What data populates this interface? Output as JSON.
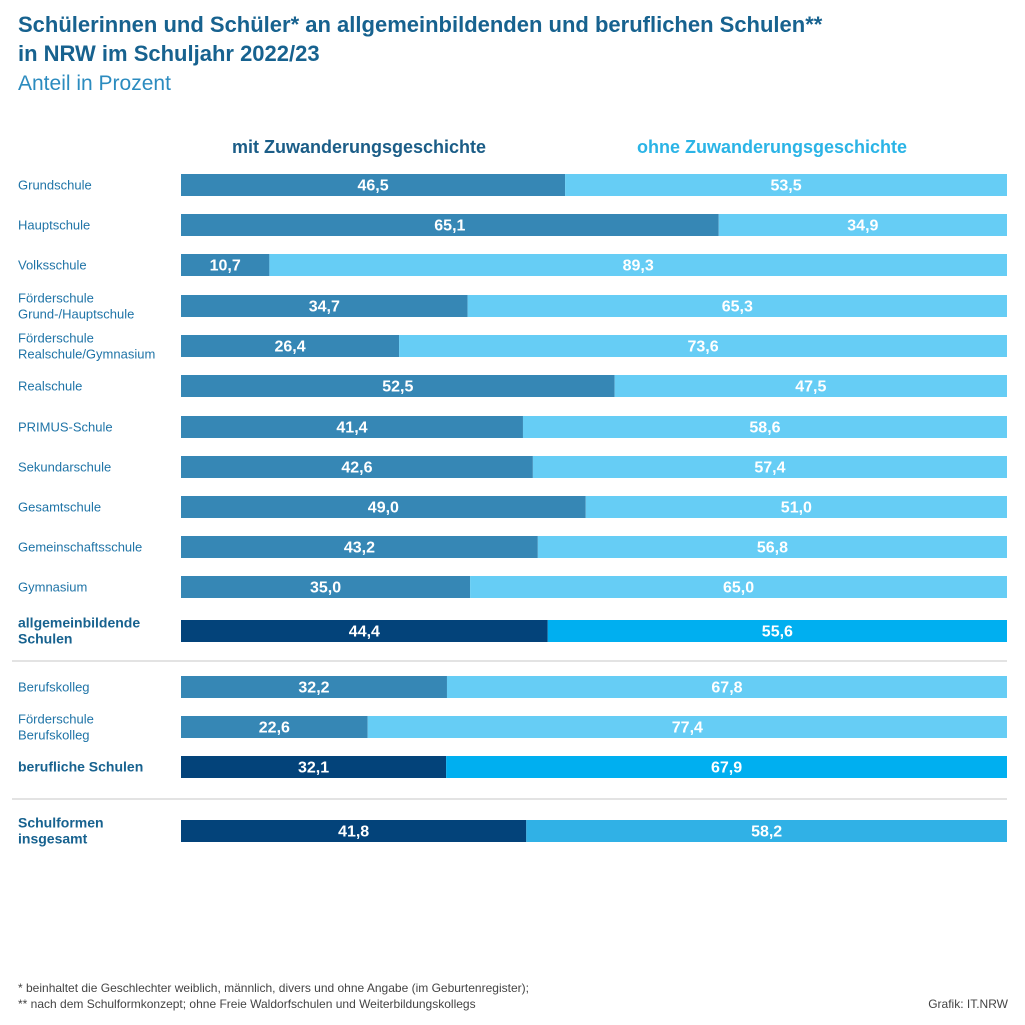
{
  "header": {
    "title_line1": "Schülerinnen und Schüler* an allgemeinbildenden und beruflichen Schulen**",
    "title_line2": "in NRW im Schuljahr 2022/23",
    "subtitle": "Anteil in Prozent"
  },
  "legend": {
    "mit": "mit Zuwanderungsgeschichte",
    "ohne": "ohne Zuwanderungsgeschichte"
  },
  "chart_data": {
    "type": "bar",
    "orientation": "horizontal",
    "stacked": true,
    "xlim": [
      0,
      100
    ],
    "grid": false,
    "legend_position": "top",
    "categories": [
      [
        "Grundschule"
      ],
      [
        "Hauptschule"
      ],
      [
        "Volksschule"
      ],
      [
        "Förderschule",
        "Grund-/Hauptschule"
      ],
      [
        "Förderschule",
        "Realschule/Gymnasium"
      ],
      [
        "Realschule"
      ],
      [
        "PRIMUS-Schule"
      ],
      [
        "Sekundarschule"
      ],
      [
        "Gesamtschule"
      ],
      [
        "Gemeinschaftsschule"
      ],
      [
        "Gymnasium"
      ],
      [
        "allgemeinbildende",
        "Schulen"
      ],
      [
        "Berufskolleg"
      ],
      [
        "Förderschule",
        "Berufskolleg"
      ],
      [
        "berufliche Schulen"
      ],
      [
        "Schulformen",
        "insgesamt"
      ]
    ],
    "row_kind": [
      "detail",
      "detail",
      "detail",
      "detail",
      "detail",
      "detail",
      "detail",
      "detail",
      "detail",
      "detail",
      "detail",
      "subtotal",
      "detail",
      "detail",
      "subtotal",
      "total"
    ],
    "series": [
      {
        "name": "mit Zuwanderungsgeschichte",
        "values": [
          46.5,
          65.1,
          10.7,
          34.7,
          26.4,
          52.5,
          41.4,
          42.6,
          49.0,
          43.2,
          35.0,
          44.4,
          32.2,
          22.6,
          32.1,
          41.8
        ],
        "labels": [
          "46,5",
          "65,1",
          "10,7",
          "34,7",
          "26,4",
          "52,5",
          "41,4",
          "42,6",
          "49,0",
          "43,2",
          "35,0",
          "44,4",
          "32,2",
          "22,6",
          "32,1",
          "41,8"
        ]
      },
      {
        "name": "ohne Zuwanderungsgeschichte",
        "values": [
          53.5,
          34.9,
          89.3,
          65.3,
          73.6,
          47.5,
          58.6,
          57.4,
          51.0,
          56.8,
          65.0,
          55.6,
          67.8,
          77.4,
          67.9,
          58.2
        ],
        "labels": [
          "53,5",
          "34,9",
          "89,3",
          "65,3",
          "73,6",
          "47,5",
          "58,6",
          "57,4",
          "51,0",
          "56,8",
          "65,0",
          "55,6",
          "67,8",
          "77,4",
          "67,9",
          "58,2"
        ]
      }
    ],
    "colors": {
      "mit_detail": "#3687b5",
      "ohne_detail": "#66cdf5",
      "mit_subtotal": "#03437a",
      "ohne_subtotal": "#00aff0",
      "mit_total": "#03437a",
      "ohne_total": "#30b1e6"
    }
  },
  "footnotes": {
    "line1": "*  beinhaltet die Geschlechter weiblich, männlich, divers und ohne Angabe (im Geburtenregister);",
    "line2": "**  nach dem Schulformkonzept; ohne Freie Waldorfschulen und Weiterbildungskollegs"
  },
  "source": "Grafik: IT.NRW"
}
